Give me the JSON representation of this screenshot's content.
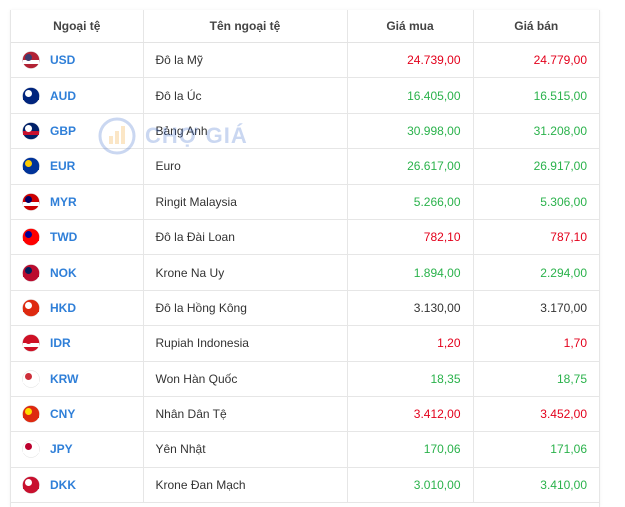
{
  "watermark": "CHỢ GIÁ",
  "table": {
    "headers": [
      "Ngoại tệ",
      "Tên ngoại tệ",
      "Giá mua",
      "Giá bán"
    ],
    "rows": [
      {
        "code": "USD",
        "name": "Đô la Mỹ",
        "buy": "24.739,00",
        "buy_color": "#e3001b",
        "sell": "24.779,00",
        "sell_color": "#e3001b"
      },
      {
        "code": "AUD",
        "name": "Đô la Úc",
        "buy": "16.405,00",
        "buy_color": "#2ab24b",
        "sell": "16.515,00",
        "sell_color": "#2ab24b"
      },
      {
        "code": "GBP",
        "name": "Bảng Anh",
        "buy": "30.998,00",
        "buy_color": "#2ab24b",
        "sell": "31.208,00",
        "sell_color": "#2ab24b"
      },
      {
        "code": "EUR",
        "name": "Euro",
        "buy": "26.617,00",
        "buy_color": "#2ab24b",
        "sell": "26.917,00",
        "sell_color": "#2ab24b"
      },
      {
        "code": "MYR",
        "name": "Ringit Malaysia",
        "buy": "5.266,00",
        "buy_color": "#2ab24b",
        "sell": "5.306,00",
        "sell_color": "#2ab24b"
      },
      {
        "code": "TWD",
        "name": "Đô la Đài Loan",
        "buy": "782,10",
        "buy_color": "#e3001b",
        "sell": "787,10",
        "sell_color": "#e3001b"
      },
      {
        "code": "NOK",
        "name": "Krone Na Uy",
        "buy": "1.894,00",
        "buy_color": "#2ab24b",
        "sell": "2.294,00",
        "sell_color": "#2ab24b"
      },
      {
        "code": "HKD",
        "name": "Đô la Hồng Kông",
        "buy": "3.130,00",
        "buy_color": "#333333",
        "sell": "3.170,00",
        "sell_color": "#333333"
      },
      {
        "code": "IDR",
        "name": "Rupiah Indonesia",
        "buy": "1,20",
        "buy_color": "#e3001b",
        "sell": "1,70",
        "sell_color": "#e3001b"
      },
      {
        "code": "KRW",
        "name": "Won Hàn Quốc",
        "buy": "18,35",
        "buy_color": "#2ab24b",
        "sell": "18,75",
        "sell_color": "#2ab24b"
      },
      {
        "code": "CNY",
        "name": "Nhân Dân Tệ",
        "buy": "3.412,00",
        "buy_color": "#e3001b",
        "sell": "3.452,00",
        "sell_color": "#e3001b"
      },
      {
        "code": "JPY",
        "name": "Yên Nhật",
        "buy": "170,06",
        "buy_color": "#2ab24b",
        "sell": "171,06",
        "sell_color": "#2ab24b"
      },
      {
        "code": "DKK",
        "name": "Krone Đan Mạch",
        "buy": "3.010,00",
        "buy_color": "#2ab24b",
        "sell": "3.410,00",
        "sell_color": "#2ab24b"
      }
    ]
  }
}
